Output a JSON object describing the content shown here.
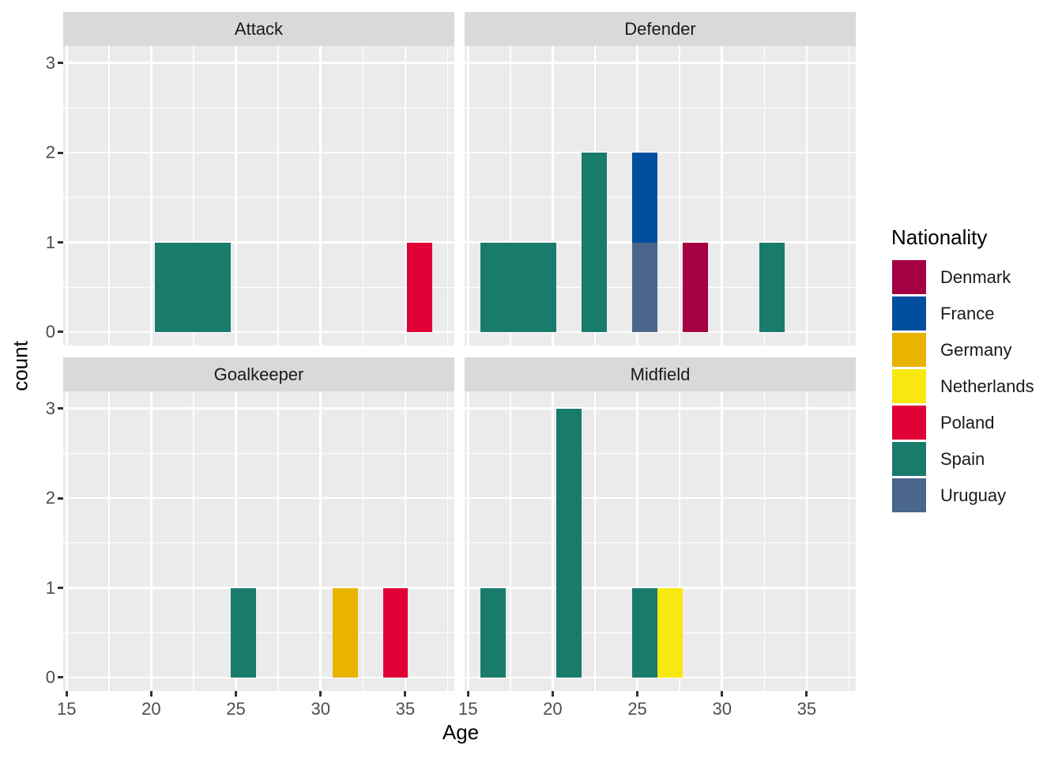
{
  "chart_data": {
    "type": "bar",
    "subtype": "faceted-stacked-histogram",
    "title": "",
    "xlabel": "Age",
    "ylabel": "count",
    "legend_title": "Nationality",
    "legend_position": "right",
    "grid": "white major and minor gridlines on gray panel",
    "x_ticks": [
      15,
      20,
      25,
      30,
      35
    ],
    "x_minor_ticks": [
      17.5,
      22.5,
      27.5,
      32.5,
      37.5
    ],
    "y_ticks": [
      0,
      1,
      2,
      3
    ],
    "y_minor_ticks": [
      0.5,
      1.5,
      2.5
    ],
    "xlim": [
      14.8,
      37.9
    ],
    "ylim": [
      -0.15,
      3.19
    ],
    "binwidth": 1.49,
    "nationalities": [
      {
        "label": "Denmark",
        "color": "#A50044"
      },
      {
        "label": "France",
        "color": "#004F9E"
      },
      {
        "label": "Germany",
        "color": "#E8B400"
      },
      {
        "label": "Netherlands",
        "color": "#F9E810"
      },
      {
        "label": "Poland",
        "color": "#DF0035"
      },
      {
        "label": "Spain",
        "color": "#197B6C"
      },
      {
        "label": "Uruguay",
        "color": "#4A668A"
      }
    ],
    "facets": [
      {
        "label": "Attack",
        "bars": [
          {
            "x0": 20.22,
            "x1": 24.69,
            "segments": [
              {
                "nationality": "Spain",
                "count": 1
              }
            ]
          },
          {
            "x0": 35.12,
            "x1": 36.61,
            "segments": [
              {
                "nationality": "Poland",
                "count": 1
              }
            ]
          }
        ]
      },
      {
        "label": "Defender",
        "bars": [
          {
            "x0": 15.75,
            "x1": 20.22,
            "segments": [
              {
                "nationality": "Spain",
                "count": 1
              }
            ]
          },
          {
            "x0": 21.71,
            "x1": 23.2,
            "segments": [
              {
                "nationality": "Spain",
                "count": 2
              }
            ]
          },
          {
            "x0": 24.69,
            "x1": 26.18,
            "segments": [
              {
                "nationality": "Uruguay",
                "count": 1
              },
              {
                "nationality": "France",
                "count": 1
              }
            ]
          },
          {
            "x0": 27.67,
            "x1": 29.16,
            "segments": [
              {
                "nationality": "Denmark",
                "count": 1
              }
            ]
          },
          {
            "x0": 32.2,
            "x1": 33.7,
            "segments": [
              {
                "nationality": "Spain",
                "count": 1
              }
            ]
          }
        ]
      },
      {
        "label": "Goalkeeper",
        "bars": [
          {
            "x0": 24.69,
            "x1": 26.18,
            "segments": [
              {
                "nationality": "Spain",
                "count": 1
              }
            ]
          },
          {
            "x0": 30.7,
            "x1": 32.19,
            "segments": [
              {
                "nationality": "Germany",
                "count": 1
              }
            ]
          },
          {
            "x0": 33.68,
            "x1": 35.17,
            "segments": [
              {
                "nationality": "Poland",
                "count": 1
              }
            ]
          }
        ]
      },
      {
        "label": "Midfield",
        "bars": [
          {
            "x0": 15.75,
            "x1": 17.24,
            "segments": [
              {
                "nationality": "Spain",
                "count": 1
              }
            ]
          },
          {
            "x0": 20.22,
            "x1": 21.71,
            "segments": [
              {
                "nationality": "Spain",
                "count": 3
              }
            ]
          },
          {
            "x0": 24.69,
            "x1": 26.18,
            "segments": [
              {
                "nationality": "Spain",
                "count": 1
              }
            ]
          },
          {
            "x0": 26.18,
            "x1": 27.67,
            "segments": [
              {
                "nationality": "Netherlands",
                "count": 1
              }
            ]
          }
        ]
      }
    ]
  },
  "colors": {
    "background": "#FFFFFF",
    "panel_bg": "#EBEBEB",
    "strip_bg": "#D9D9D9",
    "gridline": "#FFFFFF",
    "tick_mark": "#333333",
    "tick_text": "#4D4D4D",
    "strip_text": "#1A1A1A",
    "axis_title_text": "#000000"
  }
}
